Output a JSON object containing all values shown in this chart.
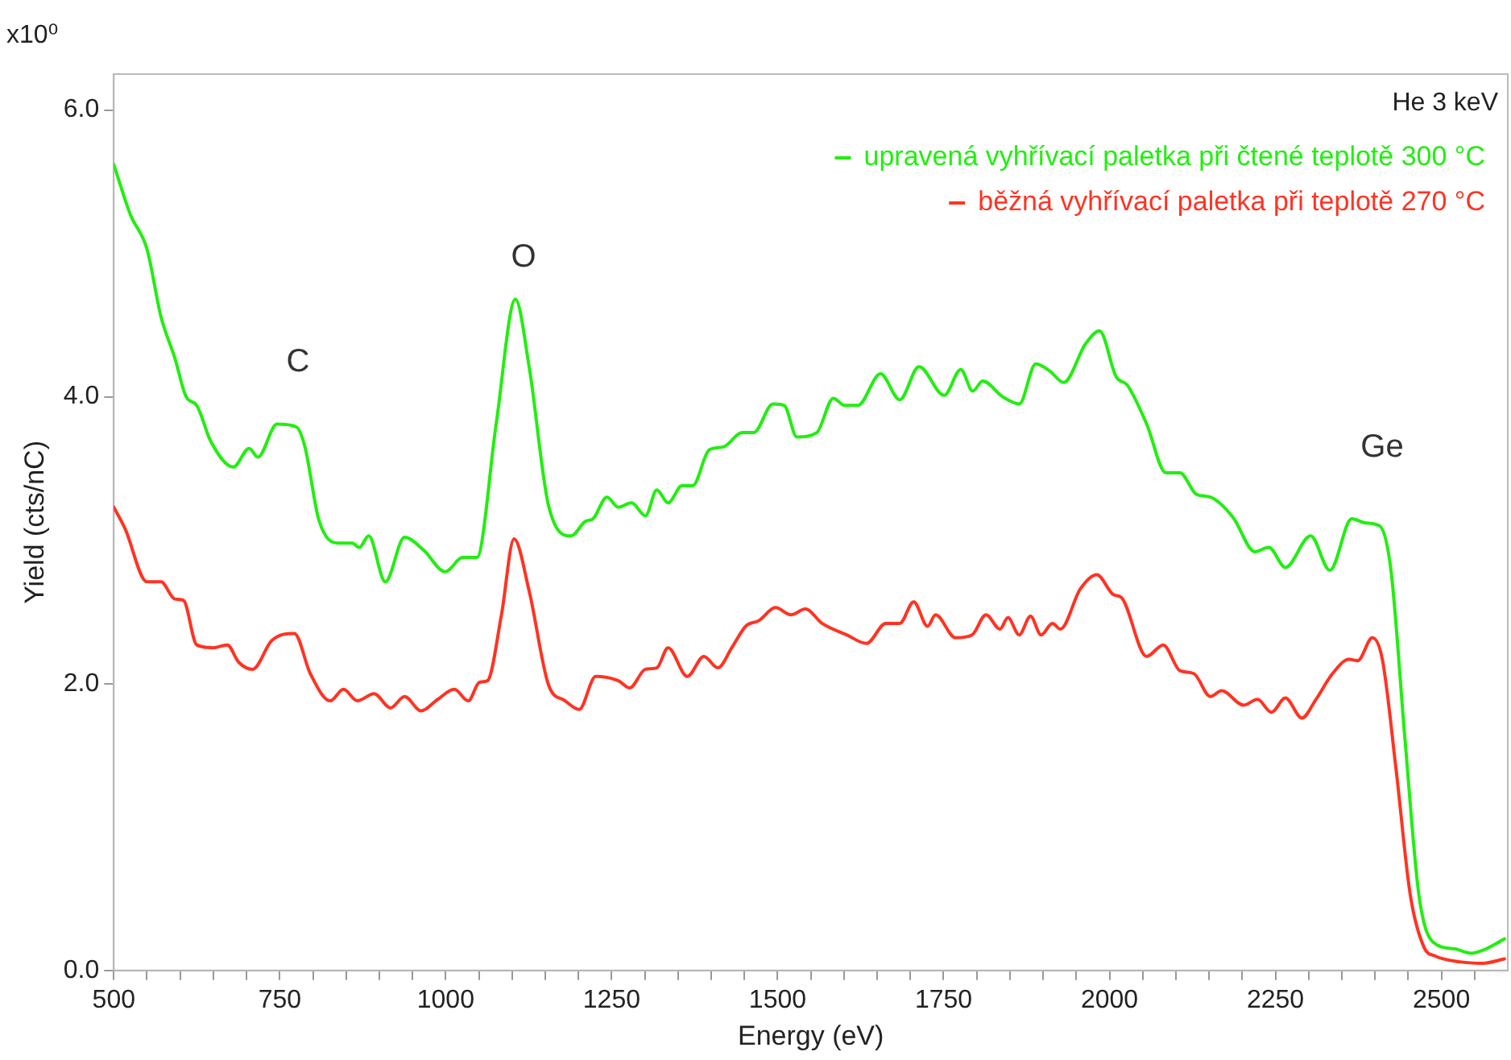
{
  "chart_data": {
    "type": "line",
    "xlabel": "Energy (eV)",
    "ylabel": "Yield (cts/nC)",
    "annotations": [
      "He 3 keV",
      "x10⁰",
      "C",
      "O",
      "Ge"
    ],
    "xlim": [
      500,
      2600
    ],
    "xticks": [
      500,
      {
        "value": 550,
        "label": null
      },
      {
        "value": 600,
        "label": null
      },
      {
        "value": 650,
        "label": null
      },
      {
        "value": 700,
        "label": null
      },
      750,
      {
        "value": 800,
        "label": null
      },
      {
        "value": 850,
        "label": null
      },
      {
        "value": 900,
        "label": null
      },
      {
        "value": 950,
        "label": null
      },
      1000,
      {
        "value": 1050,
        "label": null
      },
      {
        "value": 1100,
        "label": null
      },
      {
        "value": 1150,
        "label": null
      },
      {
        "value": 1200,
        "label": null
      },
      1250,
      {
        "value": 1300,
        "label": null
      },
      {
        "value": 1350,
        "label": null
      },
      {
        "value": 1400,
        "label": null
      },
      {
        "value": 1450,
        "label": null
      },
      1500,
      {
        "value": 1550,
        "label": null
      },
      {
        "value": 1600,
        "label": null
      },
      {
        "value": 1650,
        "label": null
      },
      {
        "value": 1700,
        "label": null
      },
      1750,
      {
        "value": 1800,
        "label": null
      },
      {
        "value": 1850,
        "label": null
      },
      {
        "value": 1900,
        "label": null
      },
      {
        "value": 1950,
        "label": null
      },
      2000,
      {
        "value": 2050,
        "label": null
      },
      {
        "value": 2100,
        "label": null
      },
      {
        "value": 2150,
        "label": null
      },
      {
        "value": 2200,
        "label": null
      },
      2250,
      {
        "value": 2300,
        "label": null
      },
      {
        "value": 2350,
        "label": null
      },
      {
        "value": 2400,
        "label": null
      },
      {
        "value": 2450,
        "label": null
      },
      2500,
      {
        "value": 2550,
        "label": null
      }
    ],
    "ylim": [
      0,
      6.25
    ],
    "yticks": [
      {
        "value": 0,
        "label": "0.0"
      },
      {
        "value": 2,
        "label": "2.0"
      },
      {
        "value": 4,
        "label": "4.0"
      },
      {
        "value": 6,
        "label": "6.0"
      }
    ],
    "grid": false,
    "legend": "top right",
    "marker": "none",
    "line_style": "solid",
    "series": [
      {
        "name": "upravená vyhřívací paletka při čtené teplotě 300 °C",
        "color": "#22ee11",
        "x": [
          500,
          525,
          550,
          571,
          592,
          609,
          625,
          646,
          680,
          704,
          717,
          746,
          775,
          788,
          809,
          838,
          859,
          870,
          884,
          909,
          938,
          967,
          999,
          1026,
          1047,
          1076,
          1105,
          1126,
          1155,
          1189,
          1210,
          1222,
          1243,
          1260,
          1280,
          1301,
          1318,
          1335,
          1356,
          1372,
          1397,
          1418,
          1447,
          1464,
          1493,
          1510,
          1529,
          1559,
          1584,
          1601,
          1621,
          1655,
          1684,
          1713,
          1751,
          1776,
          1794,
          1809,
          1839,
          1864,
          1889,
          1910,
          1931,
          1964,
          1985,
          2010,
          2027,
          2056,
          2085,
          2106,
          2131,
          2152,
          2186,
          2219,
          2240,
          2265,
          2303,
          2332,
          2365,
          2386,
          2407,
          2424,
          2445,
          2466,
          2487,
          2520,
          2545,
          2562,
          2595
        ],
        "values": [
          5.62,
          5.27,
          5.03,
          4.56,
          4.27,
          4.0,
          3.94,
          3.69,
          3.51,
          3.64,
          3.58,
          3.81,
          3.79,
          3.65,
          3.14,
          2.98,
          2.98,
          2.95,
          3.03,
          2.71,
          3.02,
          2.93,
          2.78,
          2.88,
          2.88,
          3.81,
          4.68,
          4.2,
          3.24,
          3.03,
          3.13,
          3.15,
          3.3,
          3.23,
          3.26,
          3.17,
          3.35,
          3.26,
          3.38,
          3.38,
          3.63,
          3.65,
          3.75,
          3.75,
          3.95,
          3.94,
          3.72,
          3.75,
          3.99,
          3.94,
          3.94,
          4.16,
          3.98,
          4.21,
          4.01,
          4.19,
          4.04,
          4.11,
          4.0,
          3.95,
          4.23,
          4.18,
          4.1,
          4.37,
          4.46,
          4.14,
          4.08,
          3.81,
          3.47,
          3.47,
          3.32,
          3.3,
          3.16,
          2.92,
          2.95,
          2.81,
          3.03,
          2.79,
          3.15,
          3.12,
          3.1,
          2.79,
          1.62,
          0.53,
          0.2,
          0.15,
          0.12,
          0.14,
          0.22
        ]
      },
      {
        "name": "běžná vyhřívací paletka při teplotě 270 °C",
        "color": "#ff3322",
        "x": [
          500,
          517,
          550,
          571,
          592,
          605,
          625,
          650,
          671,
          688,
          709,
          738,
          772,
          796,
          826,
          846,
          867,
          892,
          917,
          938,
          963,
          988,
          1013,
          1034,
          1051,
          1063,
          1084,
          1103,
          1126,
          1155,
          1180,
          1201,
          1226,
          1260,
          1277,
          1301,
          1318,
          1335,
          1364,
          1389,
          1410,
          1431,
          1452,
          1472,
          1497,
          1520,
          1542,
          1567,
          1604,
          1634,
          1663,
          1684,
          1705,
          1726,
          1738,
          1768,
          1793,
          1814,
          1835,
          1847,
          1864,
          1881,
          1897,
          1914,
          1926,
          1956,
          1981,
          2006,
          2018,
          2056,
          2081,
          2106,
          2127,
          2152,
          2169,
          2202,
          2223,
          2244,
          2265,
          2290,
          2311,
          2336,
          2361,
          2374,
          2396,
          2411,
          2432,
          2453,
          2474,
          2491,
          2528,
          2562,
          2595
        ],
        "values": [
          3.23,
          3.08,
          2.71,
          2.71,
          2.59,
          2.58,
          2.27,
          2.25,
          2.27,
          2.15,
          2.1,
          2.3,
          2.35,
          2.07,
          1.88,
          1.96,
          1.88,
          1.93,
          1.83,
          1.91,
          1.81,
          1.89,
          1.96,
          1.88,
          2.01,
          2.02,
          2.48,
          3.01,
          2.64,
          1.99,
          1.88,
          1.82,
          2.05,
          2.02,
          1.97,
          2.1,
          2.11,
          2.25,
          2.05,
          2.19,
          2.11,
          2.25,
          2.4,
          2.44,
          2.53,
          2.48,
          2.52,
          2.42,
          2.34,
          2.28,
          2.42,
          2.42,
          2.57,
          2.4,
          2.48,
          2.32,
          2.34,
          2.48,
          2.38,
          2.46,
          2.34,
          2.47,
          2.34,
          2.42,
          2.38,
          2.66,
          2.76,
          2.62,
          2.6,
          2.19,
          2.27,
          2.09,
          2.07,
          1.91,
          1.95,
          1.85,
          1.89,
          1.8,
          1.9,
          1.76,
          1.89,
          2.07,
          2.17,
          2.16,
          2.32,
          2.17,
          1.39,
          0.53,
          0.16,
          0.1,
          0.06,
          0.05,
          0.08
        ]
      }
    ]
  }
}
